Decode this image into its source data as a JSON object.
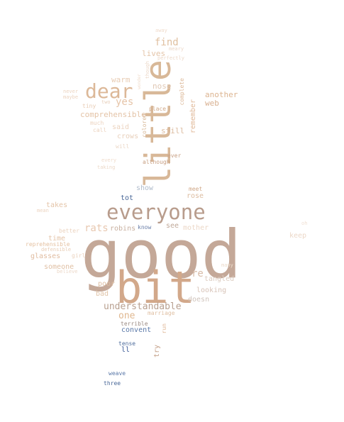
{
  "words": [
    {
      "text": "good",
      "color": "#c4a898"
    },
    {
      "text": "bit",
      "color": "#d2a88a"
    },
    {
      "text": "little",
      "color": "#d8b898"
    },
    {
      "text": "everyone",
      "color": "#b89c8c"
    },
    {
      "text": "dear",
      "color": "#dcb898"
    },
    {
      "text": "understandable",
      "color": "#b8a090"
    },
    {
      "text": "rats",
      "color": "#e8c8b0"
    },
    {
      "text": "find",
      "color": "#e0c0a0"
    },
    {
      "text": "yes",
      "color": "#e6c4a8"
    },
    {
      "text": "one",
      "color": "#e0b890"
    },
    {
      "text": "re",
      "color": "#d8bca8"
    },
    {
      "text": "another",
      "color": "#dcb490"
    },
    {
      "text": "web",
      "color": "#d8b090"
    },
    {
      "text": "lives",
      "color": "#e4c4a8"
    },
    {
      "text": "nose",
      "color": "#e0c8b4"
    },
    {
      "text": "warm",
      "color": "#e8ccb4"
    },
    {
      "text": "comprehensible",
      "color": "#e4c4a8"
    },
    {
      "text": "said",
      "color": "#ecd4c0"
    },
    {
      "text": "crows",
      "color": "#e8d0bc"
    },
    {
      "text": "still",
      "color": "#dcbca0"
    },
    {
      "text": "remember",
      "color": "#e0b898"
    },
    {
      "text": "complete",
      "color": "#dcb898"
    },
    {
      "text": "place",
      "color": "#d0a888"
    },
    {
      "text": "colored",
      "color": "#d8b898"
    },
    {
      "text": "ever",
      "color": "#c8a084"
    },
    {
      "text": "although",
      "color": "#c8a084"
    },
    {
      "text": "show",
      "color": "#b0bccc"
    },
    {
      "text": "tot",
      "color": "#4a6898"
    },
    {
      "text": "meet",
      "color": "#d0a888"
    },
    {
      "text": "rose",
      "color": "#dcbca0"
    },
    {
      "text": "takes",
      "color": "#e4c4a8"
    },
    {
      "text": "robins",
      "color": "#c8b0a0"
    },
    {
      "text": "know",
      "color": "#6a7ea8"
    },
    {
      "text": "see",
      "color": "#c0a898"
    },
    {
      "text": "mother",
      "color": "#ecd8c8"
    },
    {
      "text": "keep",
      "color": "#ecd8c8"
    },
    {
      "text": "time",
      "color": "#e4c4a8"
    },
    {
      "text": "better",
      "color": "#ecd4c0"
    },
    {
      "text": "reprehensible",
      "color": "#e4c0a0"
    },
    {
      "text": "defensible",
      "color": "#e8ccb4"
    },
    {
      "text": "glasses",
      "color": "#e0bca0"
    },
    {
      "text": "girl",
      "color": "#ecd4c0"
    },
    {
      "text": "someone",
      "color": "#e0c0a4"
    },
    {
      "text": "believe",
      "color": "#ecd8c8"
    },
    {
      "text": "poor",
      "color": "#dcbca0"
    },
    {
      "text": "bad",
      "color": "#e0c4a8"
    },
    {
      "text": "looking",
      "color": "#d8c4b8"
    },
    {
      "text": "tangled",
      "color": "#dcccc0"
    },
    {
      "text": "doesn",
      "color": "#d0c4bc"
    },
    {
      "text": "marriage",
      "color": "#e0c0a4"
    },
    {
      "text": "run",
      "color": "#e0b898"
    },
    {
      "text": "terrible",
      "color": "#9c8c84"
    },
    {
      "text": "convent",
      "color": "#5a78a8"
    },
    {
      "text": "ll",
      "color": "#3c5a98"
    },
    {
      "text": "try",
      "color": "#c4a088"
    },
    {
      "text": "tense",
      "color": "#4e6c9c"
    },
    {
      "text": "weave",
      "color": "#5a78a8"
    },
    {
      "text": "three",
      "color": "#4a6898"
    },
    {
      "text": "away",
      "color": "#f0dccc"
    },
    {
      "text": "meary",
      "color": "#ecd8c8"
    },
    {
      "text": "perfectly",
      "color": "#ecd8c8"
    },
    {
      "text": "though",
      "color": "#ecd8c8"
    },
    {
      "text": "wonder",
      "color": "#f0dccc"
    },
    {
      "text": "never",
      "color": "#ecd4c0"
    },
    {
      "text": "maybe",
      "color": "#ecd4c0"
    },
    {
      "text": "two",
      "color": "#e8d0bc"
    },
    {
      "text": "tiny",
      "color": "#e8ccb4"
    },
    {
      "text": "much",
      "color": "#ecd4c0"
    },
    {
      "text": "call",
      "color": "#ecd4c0"
    },
    {
      "text": "will",
      "color": "#ecd8c8"
    },
    {
      "text": "every",
      "color": "#f0dccc"
    },
    {
      "text": "taking",
      "color": "#ecd8c8"
    },
    {
      "text": "mean",
      "color": "#ecd4c0"
    },
    {
      "text": "many",
      "color": "#ecdccc"
    },
    {
      "text": "oh",
      "color": "#f0e0d4"
    }
  ]
}
